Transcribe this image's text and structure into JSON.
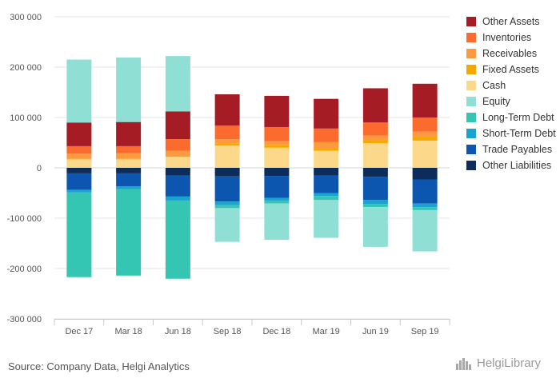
{
  "chart_data": {
    "type": "bar",
    "stacked": true,
    "categories": [
      "Dec 17",
      "Mar 18",
      "Jun 18",
      "Sep 18",
      "Dec 18",
      "Mar 19",
      "Jun 19",
      "Sep 19"
    ],
    "ylim": [
      -300000,
      300000
    ],
    "yticks": [
      -300000,
      -200000,
      -100000,
      0,
      100000,
      200000,
      300000
    ],
    "ytick_labels": [
      "-300 000",
      "-200 000",
      "-100 000",
      "0",
      "100 000",
      "200 000",
      "300 000"
    ],
    "grid": true,
    "legend_position": "right",
    "series": [
      {
        "name": "Other Liabilities",
        "color": "#0c2d5a",
        "values": [
          -11000,
          -11000,
          -15000,
          -17000,
          -16000,
          -15000,
          -18000,
          -23000
        ]
      },
      {
        "name": "Trade Payables",
        "color": "#0d56b0",
        "values": [
          -33000,
          -26000,
          -42000,
          -50000,
          -44000,
          -35000,
          -46000,
          -48000
        ]
      },
      {
        "name": "Short-Term Debt",
        "color": "#1aa3d1",
        "values": [
          -5000,
          -5000,
          -8000,
          -7000,
          -5000,
          -6000,
          -8000,
          -7000
        ]
      },
      {
        "name": "Long-Term Debt",
        "color": "#34c6b2",
        "values": [
          -168000,
          -172000,
          -155000,
          -6000,
          -6000,
          -8000,
          -6000,
          -6000
        ]
      },
      {
        "name": "Equity",
        "color": "#8fdfd4",
        "values": [
          -1000,
          -1000,
          -1000,
          -67000,
          -72000,
          -75000,
          -79000,
          -82000
        ]
      },
      {
        "name": "Cash",
        "color": "#fcd88b",
        "values": [
          17000,
          17000,
          22000,
          44000,
          40000,
          34000,
          49000,
          54000
        ]
      },
      {
        "name": "Fixed Assets",
        "color": "#f5a800",
        "values": [
          1000,
          1000,
          1000,
          5000,
          5000,
          5000,
          5000,
          8000
        ]
      },
      {
        "name": "Receivables",
        "color": "#fd9a3f",
        "values": [
          10000,
          11000,
          11000,
          8000,
          8000,
          12000,
          10000,
          10000
        ]
      },
      {
        "name": "Inventories",
        "color": "#fb6b2d",
        "values": [
          15000,
          14000,
          23000,
          27000,
          28000,
          27000,
          26000,
          28000
        ]
      },
      {
        "name": "Other Assets",
        "color": "#a51c24",
        "values": [
          47000,
          48000,
          55000,
          62000,
          62000,
          59000,
          68000,
          67000
        ]
      },
      {
        "name": "Equity",
        "color": "#8fdfd4",
        "values": [
          125000,
          128000,
          110000,
          0,
          0,
          0,
          0,
          0
        ]
      }
    ]
  },
  "legend": [
    {
      "label": "Other Assets",
      "color": "#a51c24"
    },
    {
      "label": "Inventories",
      "color": "#fb6b2d"
    },
    {
      "label": "Receivables",
      "color": "#fd9a3f"
    },
    {
      "label": "Fixed Assets",
      "color": "#f5a800"
    },
    {
      "label": "Cash",
      "color": "#fcd88b"
    },
    {
      "label": "Equity",
      "color": "#8fdfd4"
    },
    {
      "label": "Long-Term Debt",
      "color": "#34c6b2"
    },
    {
      "label": "Short-Term Debt",
      "color": "#1aa3d1"
    },
    {
      "label": "Trade Payables",
      "color": "#0d56b0"
    },
    {
      "label": "Other Liabilities",
      "color": "#0c2d5a"
    }
  ],
  "footer": {
    "source": "Source: Company Data, Helgi Analytics",
    "logo": "HelgiLibrary"
  }
}
